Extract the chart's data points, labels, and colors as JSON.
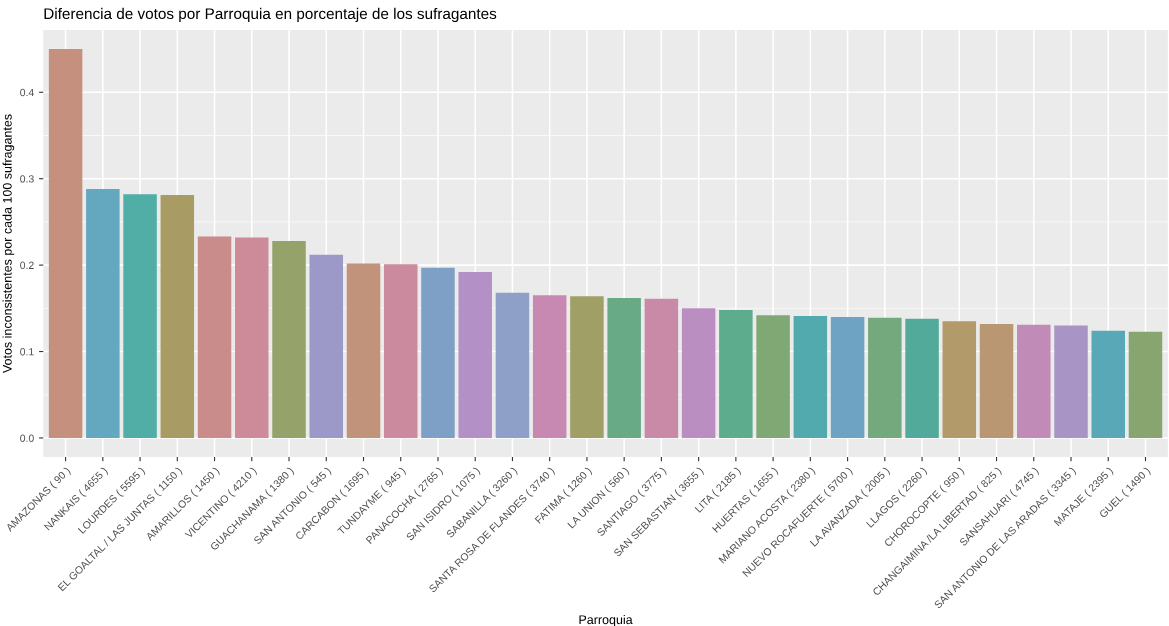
{
  "chart_data": {
    "type": "bar",
    "title": "Diferencia de votos por Parroquia en porcentaje de los sufragantes",
    "xlabel": "Parroquia",
    "ylabel": "Votos inconsistentes por cada 100 sufragantes",
    "categories": [
      "AMAZONAS ( 90 )",
      "NANKAIS ( 4655 )",
      "LOURDES ( 5595 )",
      "EL GOALTAL / LAS JUNTAS ( 1150 )",
      "AMARILLOS ( 1450 )",
      "VICENTINO ( 4210 )",
      "GUACHANAMA ( 1380 )",
      "SAN ANTONIO ( 545 )",
      "CARCABON ( 1695 )",
      "TUNDAYME ( 945 )",
      "PANACOCHA ( 2765 )",
      "SAN ISIDRO ( 1075 )",
      "SABANILLA ( 3260 )",
      "SANTA ROSA DE FLANDES ( 3740 )",
      "FATIMA ( 1260 )",
      "LA UNION ( 560 )",
      "SANTIAGO ( 3775 )",
      "SAN SEBASTIAN ( 3655 )",
      "LITA ( 2185 )",
      "HUERTAS ( 1655 )",
      "MARIANO ACOSTA ( 2380 )",
      "NUEVO ROCAFUERTE ( 5700 )",
      "LA AVANZADA ( 2005 )",
      "LLAGOS ( 2260 )",
      "CHOROCOPTE ( 950 )",
      "CHANGAIMINA /LA LIBERTAD ( 825 )",
      "SANSAHUARI ( 4745 )",
      "SAN ANTONIO DE LAS ARADAS ( 3345 )",
      "MATAJE ( 2395 )",
      "GUEL ( 1490 )"
    ],
    "values": [
      0.45,
      0.288,
      0.282,
      0.281,
      0.233,
      0.232,
      0.228,
      0.212,
      0.202,
      0.201,
      0.197,
      0.192,
      0.168,
      0.165,
      0.164,
      0.162,
      0.161,
      0.15,
      0.148,
      0.142,
      0.141,
      0.14,
      0.139,
      0.138,
      0.135,
      0.132,
      0.131,
      0.13,
      0.124,
      0.123
    ],
    "colors": [
      "#c5907e",
      "#64a8c0",
      "#50aea6",
      "#a89b64",
      "#c98c8a",
      "#cd8a98",
      "#95a36a",
      "#9c99c9",
      "#c0937a",
      "#cb8a9e",
      "#7ea0c6",
      "#b391c7",
      "#8e9fc8",
      "#c788b2",
      "#a0a066",
      "#69aa86",
      "#c98aa8",
      "#bb8ec2",
      "#5dac8e",
      "#80a874",
      "#52a9ae",
      "#6fa3c3",
      "#73a97c",
      "#52ab9a",
      "#b39a6b",
      "#b99772",
      "#c18bb7",
      "#a895c6",
      "#58a8b8",
      "#89a56f"
    ],
    "ylim": [
      -0.022,
      0.472
    ],
    "yticks": [
      {
        "value": 0.0,
        "label": "0.0"
      },
      0.1,
      0.2,
      0.3,
      0.4
    ],
    "grid": true
  }
}
